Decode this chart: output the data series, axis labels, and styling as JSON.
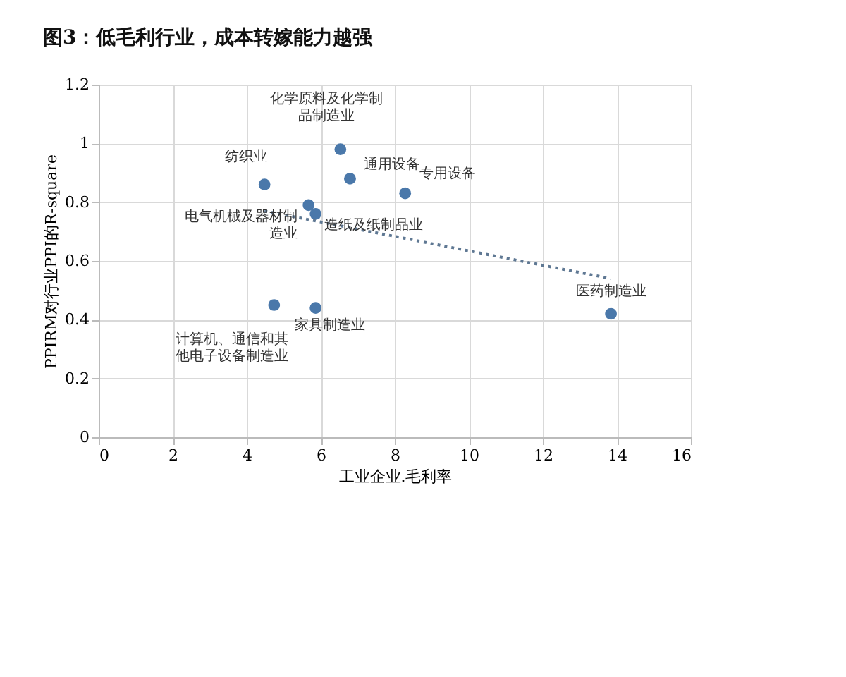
{
  "chart_data": {
    "type": "scatter",
    "title": "图3：低毛利行业，成本转嫁能力越强",
    "xlabel": "工业企业.毛利率",
    "ylabel": "PPIRM对行业PPI的R-square",
    "xlim": [
      0,
      16
    ],
    "xticks": [
      0,
      2,
      4,
      6,
      8,
      10,
      12,
      14,
      16
    ],
    "ylim": [
      0,
      1.2
    ],
    "yticks": [
      0,
      0.2,
      0.4,
      0.6,
      0.8,
      1,
      1.2
    ],
    "grid": true,
    "series": [
      {
        "marker": "circle",
        "color": "#4a78aa",
        "x": [
          4.48,
          6.53,
          6.79,
          8.28,
          5.67,
          5.86,
          4.74,
          5.86,
          13.84
        ],
        "values": [
          0.86,
          0.98,
          0.88,
          0.83,
          0.79,
          0.76,
          0.45,
          0.44,
          0.42
        ]
      },
      {
        "type": "line",
        "color": "#5f7893",
        "line_style": "dotted",
        "x": [
          4.48,
          13.84
        ],
        "values": [
          0.77,
          0.54
        ]
      }
    ],
    "annotations": [
      {
        "text": "纺织业",
        "x": 4.48,
        "y": 0.86
      },
      {
        "text": "化学原料及化学制品制造业",
        "x": 6.53,
        "y": 0.98
      },
      {
        "text": "通用设备",
        "x": 6.79,
        "y": 0.88
      },
      {
        "text": "专用设备",
        "x": 8.28,
        "y": 0.83
      },
      {
        "text": "电气机械及器材制造业",
        "x": 5.67,
        "y": 0.79
      },
      {
        "text": "造纸及纸制品业",
        "x": 5.86,
        "y": 0.76
      },
      {
        "text": "计算机、通信和其他电子设备制造业",
        "x": 4.74,
        "y": 0.45
      },
      {
        "text": "家具制造业",
        "x": 5.86,
        "y": 0.44
      },
      {
        "text": "医药制造业",
        "x": 13.84,
        "y": 0.42
      }
    ]
  }
}
